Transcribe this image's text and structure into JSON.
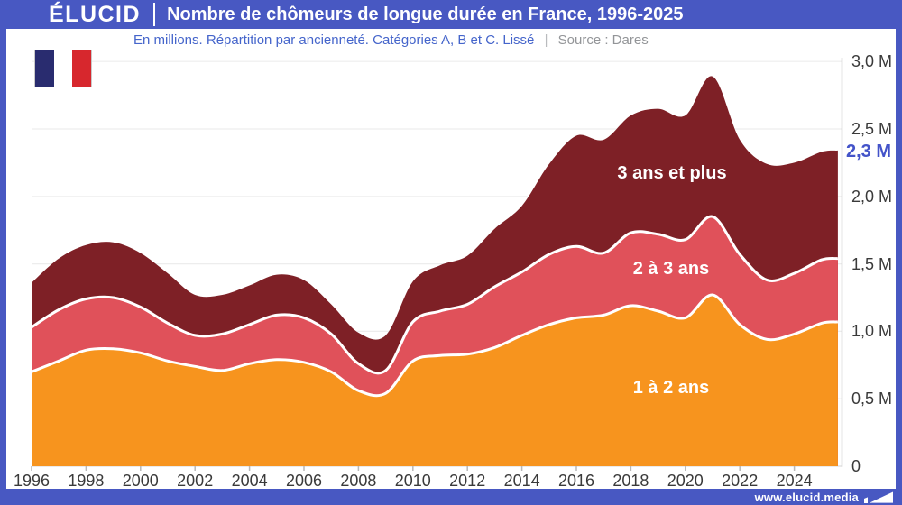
{
  "header": {
    "logo": "ÉLUCID",
    "title": "Nombre de chômeurs de longue durée en France, 1996-2025",
    "subtitle": "En millions. Répartition par ancienneté. Catégories A, B et C. Lissé",
    "separator": "|",
    "source": "Source : Dares"
  },
  "footer": {
    "url": "www.elucid.media"
  },
  "flag_colors": {
    "blue": "#292C6F",
    "white": "#FFFFFF",
    "red": "#D7272D"
  },
  "theme": {
    "brand_blue": "#4858C2",
    "subtitle_blue": "#4565CB",
    "source_gray": "#939598",
    "annotation_blue": "#4353C9",
    "axis_text": "#3A3A3A",
    "gridline": "#EDEDED",
    "axis_line": "#C9C9C9",
    "separator_stroke": "#FFFFFF"
  },
  "chart_data": {
    "type": "area",
    "stacked": true,
    "title": "Nombre de chômeurs de longue durée en France, 1996-2025",
    "unit": "millions",
    "grid": true,
    "legend_position": "labels-inside-areas",
    "ylim": [
      0,
      3.0
    ],
    "x": [
      1996,
      1997,
      1998,
      1999,
      2000,
      2001,
      2002,
      2003,
      2004,
      2005,
      2006,
      2007,
      2008,
      2009,
      2010,
      2011,
      2012,
      2013,
      2014,
      2015,
      2016,
      2017,
      2018,
      2019,
      2020,
      2021,
      2022,
      2023,
      2024,
      2025,
      2025.6
    ],
    "series": [
      {
        "name": "1 à 2 ans",
        "color": "#F7941E",
        "values": [
          0.7,
          0.78,
          0.86,
          0.87,
          0.84,
          0.78,
          0.74,
          0.71,
          0.76,
          0.79,
          0.77,
          0.7,
          0.56,
          0.54,
          0.78,
          0.82,
          0.83,
          0.88,
          0.97,
          1.05,
          1.1,
          1.12,
          1.19,
          1.15,
          1.1,
          1.27,
          1.05,
          0.94,
          0.98,
          1.06,
          1.07
        ]
      },
      {
        "name": "2 à 3 ans",
        "color": "#E0515A",
        "values": [
          0.33,
          0.38,
          0.38,
          0.38,
          0.34,
          0.28,
          0.23,
          0.27,
          0.29,
          0.33,
          0.33,
          0.28,
          0.2,
          0.17,
          0.29,
          0.33,
          0.37,
          0.45,
          0.47,
          0.52,
          0.53,
          0.46,
          0.54,
          0.57,
          0.58,
          0.58,
          0.52,
          0.44,
          0.45,
          0.47,
          0.47
        ]
      },
      {
        "name": "3 ans et plus",
        "color": "#7E2026",
        "values": [
          0.33,
          0.38,
          0.4,
          0.41,
          0.4,
          0.37,
          0.3,
          0.29,
          0.29,
          0.3,
          0.28,
          0.22,
          0.23,
          0.26,
          0.3,
          0.34,
          0.36,
          0.43,
          0.49,
          0.67,
          0.82,
          0.84,
          0.87,
          0.93,
          0.92,
          1.04,
          0.85,
          0.86,
          0.82,
          0.8,
          0.8
        ]
      }
    ],
    "xticks": [
      1996,
      1998,
      2000,
      2002,
      2004,
      2006,
      2008,
      2010,
      2012,
      2014,
      2016,
      2018,
      2020,
      2022,
      2024
    ],
    "yticks": [
      {
        "v": 0,
        "label": "0"
      },
      {
        "v": 0.5,
        "label": "0,5 M"
      },
      {
        "v": 1.0,
        "label": "1,0 M"
      },
      {
        "v": 1.5,
        "label": "1,5 M"
      },
      {
        "v": 2.0,
        "label": "2,0 M"
      },
      {
        "v": 2.5,
        "label": "2,5 M"
      },
      {
        "v": 3.0,
        "label": "3,0 M"
      }
    ],
    "annotation": {
      "label": "2,3 M",
      "value": 2.33
    }
  }
}
